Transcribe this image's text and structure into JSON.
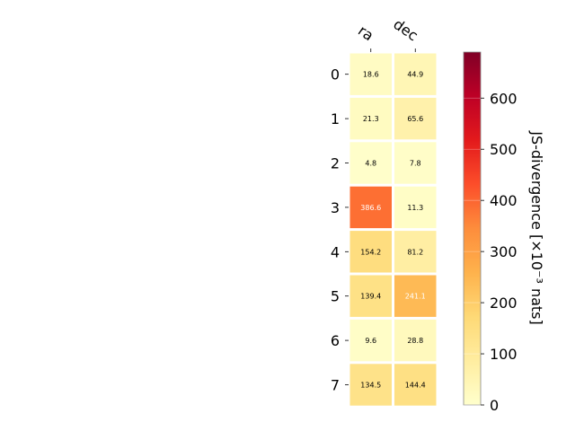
{
  "chart_data": {
    "type": "heatmap",
    "x_labels": [
      "ra",
      "dec"
    ],
    "y_labels": [
      "0",
      "1",
      "2",
      "3",
      "4",
      "5",
      "6",
      "7"
    ],
    "values": [
      [
        18.6,
        44.9
      ],
      [
        21.3,
        65.6
      ],
      [
        4.8,
        7.8
      ],
      [
        386.6,
        11.3
      ],
      [
        154.2,
        81.2
      ],
      [
        139.4,
        241.1
      ],
      [
        9.6,
        28.8
      ],
      [
        134.5,
        144.4
      ]
    ],
    "value_labels": [
      [
        "18.6",
        "44.9"
      ],
      [
        "21.3",
        "65.6"
      ],
      [
        "4.8",
        "7.8"
      ],
      [
        "386.6",
        "11.3"
      ],
      [
        "154.2",
        "81.2"
      ],
      [
        "139.4",
        "241.1"
      ],
      [
        "9.6",
        "28.8"
      ],
      [
        "134.5",
        "144.4"
      ]
    ],
    "colorbar": {
      "label": "JS-divergence [×10⁻³ nats]",
      "range": [
        0,
        690
      ],
      "ticks": [
        0,
        100,
        200,
        300,
        400,
        500,
        600
      ],
      "tick_labels": [
        "0",
        "100",
        "200",
        "300",
        "400",
        "500",
        "600"
      ],
      "colormap": "YlOrRd"
    },
    "grid": false
  }
}
